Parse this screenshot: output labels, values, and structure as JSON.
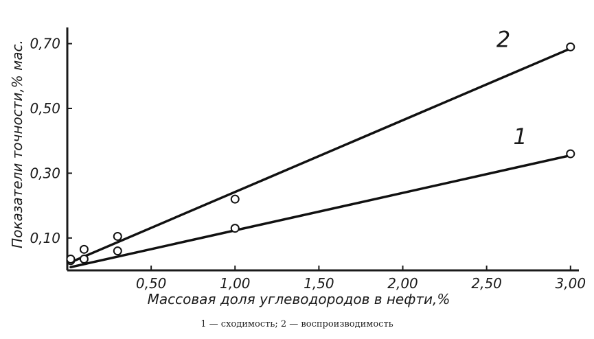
{
  "chart_data": {
    "type": "scatter",
    "xlabel": "Массовая доля углеводородов в нефти,%",
    "ylabel": "Показатели точности,% мас.",
    "xlim": [
      0,
      3.05
    ],
    "ylim": [
      0,
      0.75
    ],
    "x_ticks": [
      {
        "value": 0.5,
        "label": "0,50"
      },
      {
        "value": 1.0,
        "label": "1,00"
      },
      {
        "value": 1.5,
        "label": "1,50"
      },
      {
        "value": 2.0,
        "label": "2,00"
      },
      {
        "value": 2.5,
        "label": "2,50"
      },
      {
        "value": 3.0,
        "label": "3,00"
      }
    ],
    "y_ticks": [
      {
        "value": 0.1,
        "label": "0,10"
      },
      {
        "value": 0.3,
        "label": "0,30"
      },
      {
        "value": 0.5,
        "label": "0,50"
      },
      {
        "value": 0.7,
        "label": "0,70"
      }
    ],
    "grid": false,
    "series": [
      {
        "name": "1",
        "points": [
          {
            "x": 0.02,
            "y": 0.03
          },
          {
            "x": 0.1,
            "y": 0.035
          },
          {
            "x": 0.3,
            "y": 0.06
          },
          {
            "x": 1.0,
            "y": 0.13
          },
          {
            "x": 3.0,
            "y": 0.36
          }
        ],
        "fit_line": [
          {
            "x": 0.02,
            "y": 0.01
          },
          {
            "x": 3.0,
            "y": 0.355
          }
        ],
        "label_at": {
          "x": 2.7,
          "y": 0.39
        }
      },
      {
        "name": "2",
        "points": [
          {
            "x": 0.02,
            "y": 0.035
          },
          {
            "x": 0.1,
            "y": 0.065
          },
          {
            "x": 0.3,
            "y": 0.105
          },
          {
            "x": 1.0,
            "y": 0.22
          },
          {
            "x": 3.0,
            "y": 0.69
          }
        ],
        "fit_line": [
          {
            "x": 0.02,
            "y": 0.025
          },
          {
            "x": 3.0,
            "y": 0.685
          }
        ],
        "label_at": {
          "x": 2.6,
          "y": 0.69
        }
      }
    ]
  },
  "caption": "1 — сходимость; 2 — воспроизводимость"
}
